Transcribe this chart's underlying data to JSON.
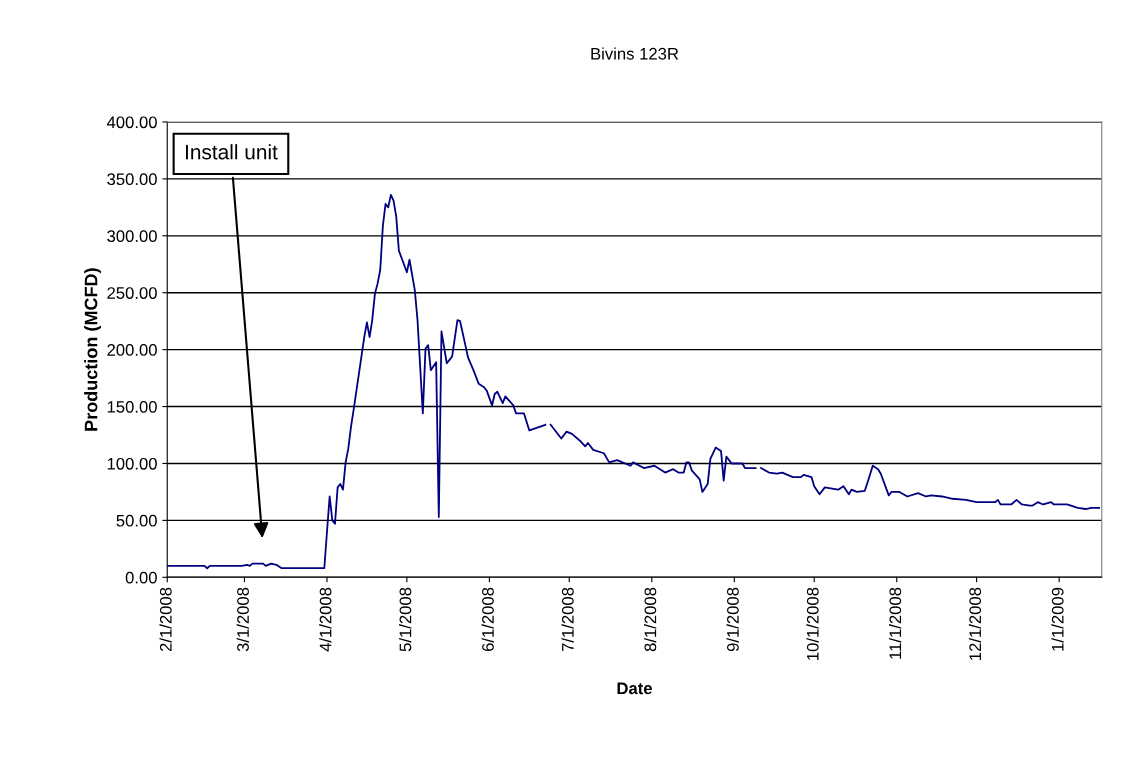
{
  "chart_data": {
    "type": "line",
    "title": "Bivins 123R",
    "xlabel": "Date",
    "ylabel": "Production (MCFD)",
    "annotations": [
      "Install unit"
    ],
    "x": [
      "2008-02-01",
      "2008-02-15",
      "2008-02-16",
      "2008-02-17",
      "2008-02-29",
      "2008-03-02",
      "2008-03-03",
      "2008-03-04",
      "2008-03-08",
      "2008-03-09",
      "2008-03-11",
      "2008-03-13",
      "2008-03-15",
      "2008-03-31",
      "2008-04-01",
      "2008-04-02",
      "2008-04-03",
      "2008-04-04",
      "2008-04-05",
      "2008-04-06",
      "2008-04-07",
      "2008-04-08",
      "2008-04-09",
      "2008-04-10",
      "2008-04-11",
      "2008-04-13",
      "2008-04-15",
      "2008-04-16",
      "2008-04-17",
      "2008-04-18",
      "2008-04-19",
      "2008-04-20",
      "2008-04-21",
      "2008-04-22",
      "2008-04-23",
      "2008-04-24",
      "2008-04-25",
      "2008-04-26",
      "2008-04-27",
      "2008-04-28",
      "2008-05-01",
      "2008-05-02",
      "2008-05-04",
      "2008-05-05",
      "2008-05-07",
      "2008-05-08",
      "2008-05-09",
      "2008-05-10",
      "2008-05-12",
      "2008-05-13",
      "2008-05-14",
      "2008-05-16",
      "2008-05-17",
      "2008-05-18",
      "2008-05-20",
      "2008-05-21",
      "2008-05-24",
      "2008-05-26",
      "2008-05-28",
      "2008-05-30",
      "2008-05-31",
      "2008-06-02",
      "2008-06-03",
      "2008-06-04",
      "2008-06-06",
      "2008-06-07",
      "2008-06-10",
      "2008-06-11",
      "2008-06-14",
      "2008-06-16",
      "2008-06-22",
      "2008-06-23",
      "2008-06-24",
      "2008-06-28",
      "2008-06-30",
      "2008-07-02",
      "2008-07-05",
      "2008-07-07",
      "2008-07-08",
      "2008-07-10",
      "2008-07-14",
      "2008-07-16",
      "2008-07-19",
      "2008-07-24",
      "2008-07-25",
      "2008-07-29",
      "2008-08-02",
      "2008-08-06",
      "2008-08-09",
      "2008-08-11",
      "2008-08-13",
      "2008-08-14",
      "2008-08-15",
      "2008-08-16",
      "2008-08-19",
      "2008-08-20",
      "2008-08-22",
      "2008-08-23",
      "2008-08-25",
      "2008-08-27",
      "2008-08-28",
      "2008-08-29",
      "2008-08-31",
      "2008-09-04",
      "2008-09-05",
      "2008-09-09",
      "2008-09-10",
      "2008-09-11",
      "2008-09-14",
      "2008-09-17",
      "2008-09-19",
      "2008-09-23",
      "2008-09-26",
      "2008-09-27",
      "2008-09-30",
      "2008-10-01",
      "2008-10-03",
      "2008-10-05",
      "2008-10-10",
      "2008-10-12",
      "2008-10-14",
      "2008-10-15",
      "2008-10-17",
      "2008-10-20",
      "2008-10-21",
      "2008-10-23",
      "2008-10-25",
      "2008-10-26",
      "2008-10-29",
      "2008-10-30",
      "2008-11-02",
      "2008-11-05",
      "2008-11-09",
      "2008-11-12",
      "2008-11-14",
      "2008-11-18",
      "2008-11-22",
      "2008-11-27",
      "2008-12-01",
      "2008-12-08",
      "2008-12-09",
      "2008-12-10",
      "2008-12-14",
      "2008-12-16",
      "2008-12-18",
      "2008-12-21",
      "2008-12-22",
      "2008-12-24",
      "2008-12-26",
      "2008-12-29",
      "2008-12-30",
      "2009-01-04",
      "2009-01-08",
      "2009-01-11",
      "2009-01-13",
      "2009-01-16"
    ],
    "series": [
      {
        "color": "#000080",
        "values": [
          10,
          10,
          8,
          10,
          10,
          11,
          10,
          12,
          12,
          10,
          12,
          11,
          8,
          8,
          40,
          71,
          50,
          47,
          79,
          82,
          77,
          101,
          113,
          132,
          147,
          179,
          211,
          224,
          211,
          226,
          249,
          258,
          270,
          309,
          328,
          325,
          336,
          331,
          317,
          287,
          268,
          279,
          252,
          226,
          144,
          201,
          204,
          182,
          189,
          53,
          216,
          188,
          191,
          194,
          226,
          225,
          193,
          182,
          170,
          167,
          164,
          151,
          161,
          163,
          153,
          159,
          151,
          144,
          144,
          129,
          134,
          null,
          134,
          122,
          128,
          126,
          120,
          115,
          118,
          112,
          109,
          101,
          103,
          98,
          101,
          96,
          98,
          92,
          95,
          92,
          92,
          101,
          101,
          94,
          86,
          75,
          82,
          104,
          114,
          111,
          85,
          106,
          100,
          100,
          96,
          96,
          null,
          96,
          92,
          91,
          92,
          88,
          88,
          90,
          88,
          80,
          73,
          79,
          77,
          80,
          73,
          77,
          75,
          76,
          83,
          98,
          95,
          91,
          72,
          75,
          75,
          71,
          74,
          71,
          72,
          71,
          69,
          68,
          66,
          66,
          68,
          64,
          64,
          68,
          64,
          63,
          63,
          66,
          64,
          66,
          64,
          64,
          61,
          60,
          61,
          61
        ]
      }
    ],
    "xlim": [
      "2008-02-01",
      "2009-01-17"
    ],
    "xticks": [
      {
        "value": "2008-02-01",
        "label": "2/1/2008"
      },
      {
        "value": "2008-03-01",
        "label": "3/1/2008"
      },
      {
        "value": "2008-04-01",
        "label": "4/1/2008"
      },
      {
        "value": "2008-05-01",
        "label": "5/1/2008"
      },
      {
        "value": "2008-06-01",
        "label": "6/1/2008"
      },
      {
        "value": "2008-07-01",
        "label": "7/1/2008"
      },
      {
        "value": "2008-08-01",
        "label": "8/1/2008"
      },
      {
        "value": "2008-09-01",
        "label": "9/1/2008"
      },
      {
        "value": "2008-10-01",
        "label": "10/1/2008"
      },
      {
        "value": "2008-11-01",
        "label": "11/1/2008"
      },
      {
        "value": "2008-12-01",
        "label": "12/1/2008"
      },
      {
        "value": "2009-01-01",
        "label": "1/1/2009"
      }
    ],
    "ylim": [
      0,
      400
    ],
    "yticks": [
      {
        "value": 0,
        "label": "0.00"
      },
      {
        "value": 50,
        "label": "50.00"
      },
      {
        "value": 100,
        "label": "100.00"
      },
      {
        "value": 150,
        "label": "150.00"
      },
      {
        "value": 200,
        "label": "200.00"
      },
      {
        "value": 250,
        "label": "250.00"
      },
      {
        "value": 300,
        "label": "300.00"
      },
      {
        "value": 350,
        "label": "350.00"
      },
      {
        "value": 400,
        "label": "400.00"
      }
    ],
    "grid": "y",
    "legend": false,
    "marker": "none",
    "line_style": "solid"
  }
}
